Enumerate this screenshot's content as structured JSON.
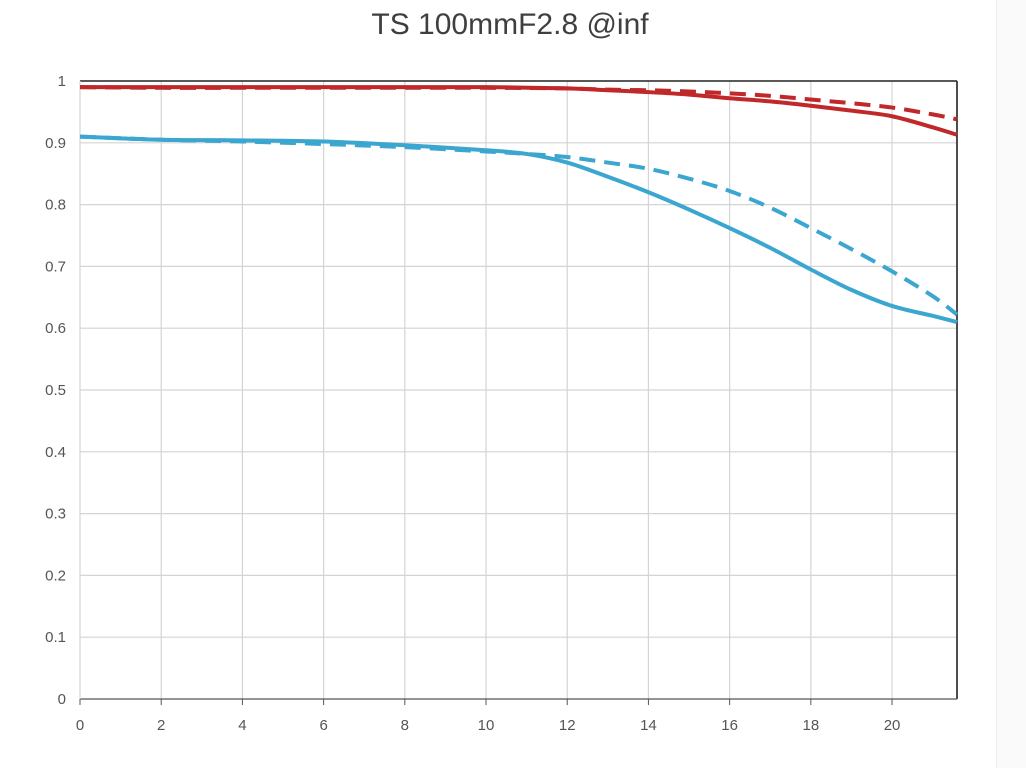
{
  "chart_data": {
    "type": "line",
    "title": "TS 100mmF2.8 @inf",
    "xlabel": "",
    "ylabel": "",
    "xlim": [
      0,
      21.6
    ],
    "ylim": [
      0,
      1
    ],
    "x_ticks": [
      0,
      2,
      4,
      6,
      8,
      10,
      12,
      14,
      16,
      18,
      20
    ],
    "y_ticks": [
      0,
      0.1,
      0.2,
      0.3,
      0.4,
      0.5,
      0.6,
      0.7,
      0.8,
      0.9,
      1
    ],
    "grid": true,
    "series": [
      {
        "color": "#c0282a",
        "style": "solid",
        "x": [
          0,
          2,
          4,
          6,
          8,
          10,
          12,
          13,
          14,
          15,
          16,
          17,
          18,
          19,
          20,
          21,
          21.6
        ],
        "y": [
          0.99,
          0.99,
          0.99,
          0.99,
          0.99,
          0.99,
          0.988,
          0.985,
          0.982,
          0.978,
          0.972,
          0.967,
          0.96,
          0.952,
          0.943,
          0.925,
          0.913
        ]
      },
      {
        "color": "#c0282a",
        "style": "dashed",
        "x": [
          0,
          2,
          4,
          6,
          8,
          10,
          12,
          13,
          14,
          15,
          16,
          17,
          18,
          19,
          20,
          21,
          21.6
        ],
        "y": [
          0.99,
          0.989,
          0.989,
          0.989,
          0.989,
          0.989,
          0.988,
          0.986,
          0.985,
          0.983,
          0.98,
          0.976,
          0.97,
          0.964,
          0.957,
          0.946,
          0.938
        ]
      },
      {
        "color": "#3ba6d0",
        "style": "solid",
        "x": [
          0,
          2,
          4,
          6,
          8,
          10,
          11,
          12,
          13,
          14,
          15,
          16,
          17,
          18,
          19,
          20,
          21,
          21.6
        ],
        "y": [
          0.91,
          0.905,
          0.904,
          0.902,
          0.896,
          0.888,
          0.882,
          0.868,
          0.845,
          0.82,
          0.792,
          0.762,
          0.73,
          0.695,
          0.662,
          0.636,
          0.62,
          0.61
        ]
      },
      {
        "color": "#3ba6d0",
        "style": "dashed",
        "x": [
          0,
          2,
          4,
          6,
          8,
          10,
          11,
          12,
          13,
          14,
          15,
          16,
          17,
          18,
          19,
          20,
          21,
          21.6
        ],
        "y": [
          0.91,
          0.905,
          0.902,
          0.898,
          0.893,
          0.886,
          0.882,
          0.877,
          0.868,
          0.858,
          0.842,
          0.822,
          0.795,
          0.762,
          0.728,
          0.692,
          0.652,
          0.622
        ]
      }
    ]
  }
}
